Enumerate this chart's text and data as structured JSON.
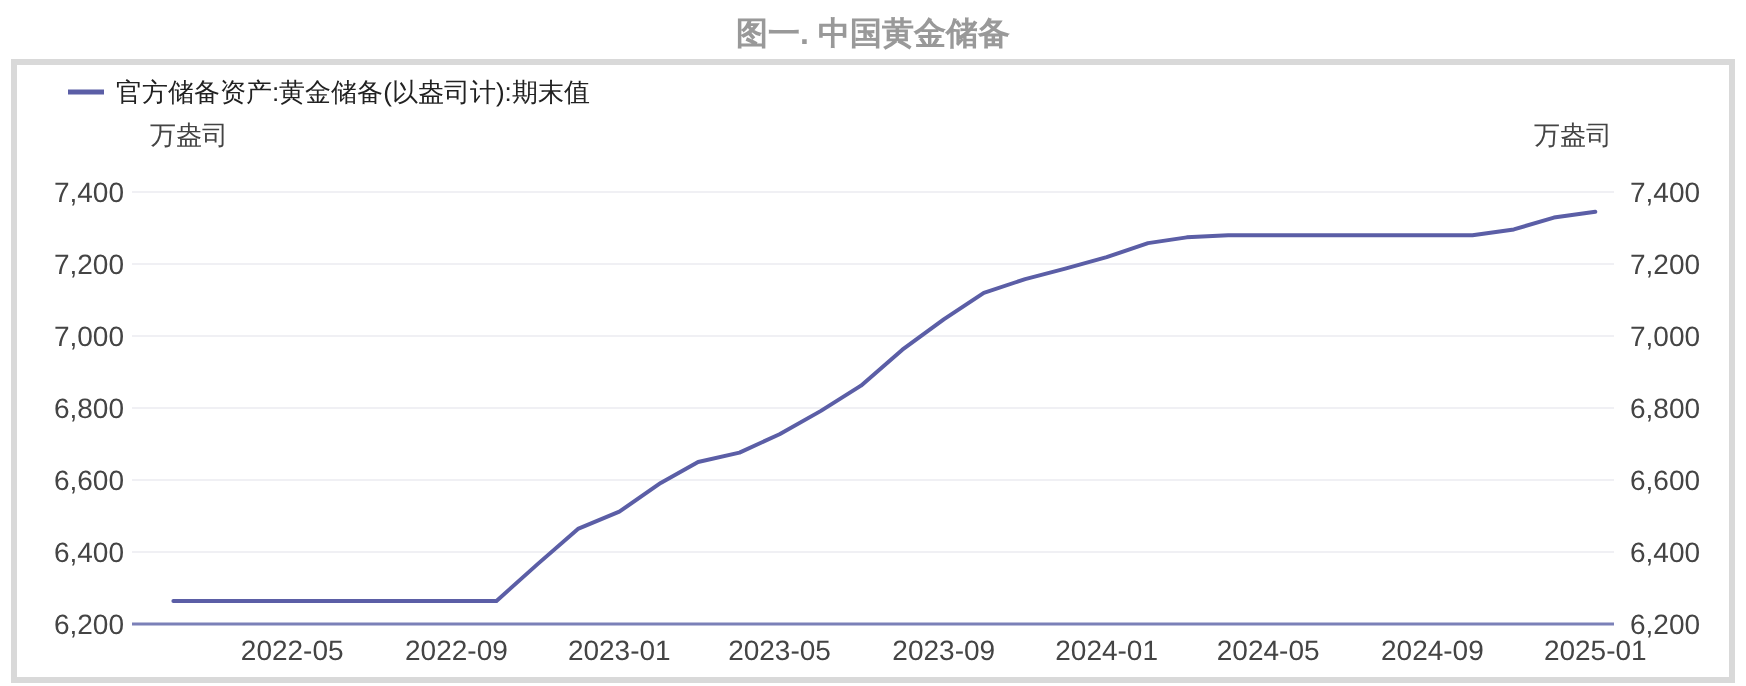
{
  "chart_data": {
    "type": "line",
    "title": "图一. 中国黄金储备",
    "ylabel": "万盎司",
    "y2label": "万盎司",
    "x": [
      "2022-02",
      "2022-03",
      "2022-04",
      "2022-05",
      "2022-06",
      "2022-07",
      "2022-08",
      "2022-09",
      "2022-10",
      "2022-11",
      "2022-12",
      "2023-01",
      "2023-02",
      "2023-03",
      "2023-04",
      "2023-05",
      "2023-06",
      "2023-07",
      "2023-08",
      "2023-09",
      "2023-10",
      "2023-11",
      "2023-12",
      "2024-01",
      "2024-02",
      "2024-03",
      "2024-04",
      "2024-05",
      "2024-06",
      "2024-07",
      "2024-08",
      "2024-09",
      "2024-10",
      "2024-11",
      "2024-12",
      "2025-01"
    ],
    "series": [
      {
        "name": "官方储备资产:黄金储备(以盎司计):期末值",
        "color": "#5b5ea6",
        "values": [
          6264,
          6264,
          6264,
          6264,
          6264,
          6264,
          6264,
          6264,
          6264,
          6367,
          6464,
          6512,
          6592,
          6650,
          6676,
          6727,
          6792,
          6862,
          6962,
          7046,
          7120,
          7158,
          7187,
          7219,
          7258,
          7274,
          7280,
          7280,
          7280,
          7280,
          7280,
          7280,
          7280,
          7296,
          7329,
          7345
        ]
      }
    ],
    "xlim": [
      "2022-01",
      "2025-01-15"
    ],
    "xticks": [
      {
        "value": "2022-05",
        "label": "2022-05"
      },
      {
        "value": "2022-09",
        "label": "2022-09"
      },
      {
        "value": "2023-01",
        "label": "2023-01"
      },
      {
        "value": "2023-05",
        "label": "2023-05"
      },
      {
        "value": "2023-09",
        "label": "2023-09"
      },
      {
        "value": "2024-01",
        "label": "2024-01"
      },
      {
        "value": "2024-05",
        "label": "2024-05"
      },
      {
        "value": "2024-09",
        "label": "2024-09"
      },
      {
        "value": "2025-01",
        "label": "2025-01"
      }
    ],
    "ylim": [
      6200,
      7400
    ],
    "yticks": [
      {
        "value": 6200,
        "label": "6,200"
      },
      {
        "value": 6400,
        "label": "6,400"
      },
      {
        "value": 6600,
        "label": "6,600"
      },
      {
        "value": 6800,
        "label": "6,800"
      },
      {
        "value": 7000,
        "label": "7,000"
      },
      {
        "value": 7200,
        "label": "7,200"
      },
      {
        "value": 7400,
        "label": "7,400"
      }
    ],
    "y2lim": [
      6200,
      7400
    ],
    "y2ticks": [
      {
        "value": 6200,
        "label": "6,200"
      },
      {
        "value": 6400,
        "label": "6,400"
      },
      {
        "value": 6600,
        "label": "6,600"
      },
      {
        "value": 6800,
        "label": "6,800"
      },
      {
        "value": 7000,
        "label": "7,000"
      },
      {
        "value": 7200,
        "label": "7,200"
      },
      {
        "value": 7400,
        "label": "7,400"
      }
    ],
    "grid": "y",
    "legend": "top left",
    "marker": "none",
    "line_style": "solid"
  }
}
